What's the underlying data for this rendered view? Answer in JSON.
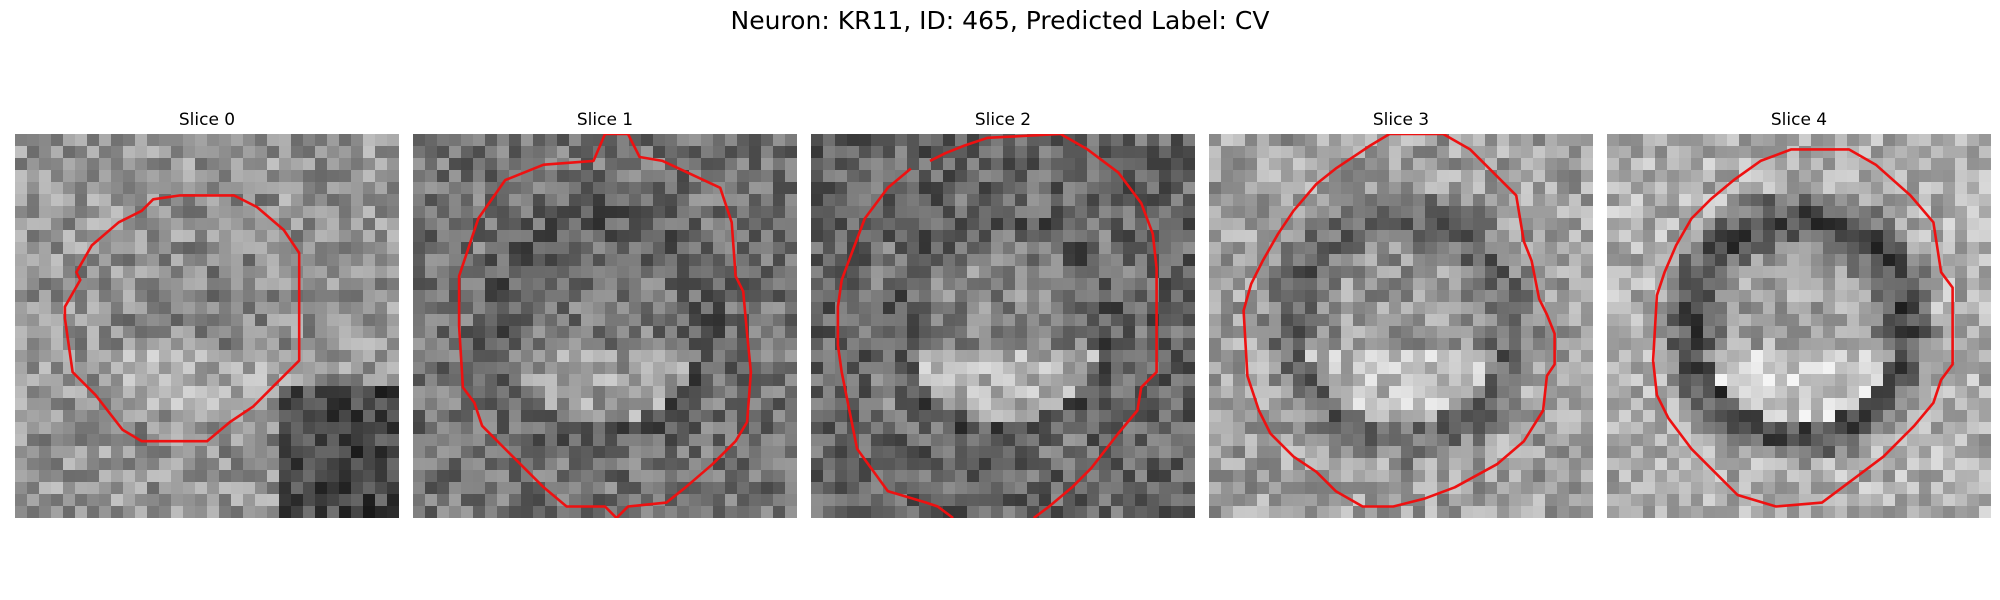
{
  "figure": {
    "title": "Neuron: KR11, ID: 465, Predicted Label: CV"
  },
  "panels": [
    {
      "title": "Slice 0",
      "seed": 11,
      "bg": 150,
      "inner": 135,
      "ring": 150,
      "dark_lower_right": true,
      "contour": [
        [
          0.36,
          0.17
        ],
        [
          0.43,
          0.16
        ],
        [
          0.57,
          0.16
        ],
        [
          0.63,
          0.19
        ],
        [
          0.7,
          0.25
        ],
        [
          0.74,
          0.31
        ],
        [
          0.74,
          0.59
        ],
        [
          0.68,
          0.65
        ],
        [
          0.62,
          0.71
        ],
        [
          0.56,
          0.75
        ],
        [
          0.5,
          0.8
        ],
        [
          0.33,
          0.8
        ],
        [
          0.28,
          0.77
        ],
        [
          0.21,
          0.68
        ],
        [
          0.15,
          0.62
        ],
        [
          0.13,
          0.48
        ],
        [
          0.13,
          0.45
        ],
        [
          0.17,
          0.38
        ],
        [
          0.16,
          0.36
        ],
        [
          0.2,
          0.29
        ],
        [
          0.27,
          0.23
        ],
        [
          0.33,
          0.2
        ]
      ]
    },
    {
      "title": "Slice 1",
      "seed": 23,
      "bg": 115,
      "inner": 120,
      "ring": 85,
      "dark_lower_right": false,
      "contour": [
        [
          0.24,
          0.12
        ],
        [
          0.34,
          0.08
        ],
        [
          0.47,
          0.07
        ],
        [
          0.5,
          0.0
        ],
        [
          0.56,
          0.0
        ],
        [
          0.59,
          0.06
        ],
        [
          0.65,
          0.07
        ],
        [
          0.8,
          0.14
        ],
        [
          0.83,
          0.23
        ],
        [
          0.84,
          0.37
        ],
        [
          0.86,
          0.41
        ],
        [
          0.87,
          0.52
        ],
        [
          0.88,
          0.62
        ],
        [
          0.87,
          0.75
        ],
        [
          0.84,
          0.8
        ],
        [
          0.78,
          0.86
        ],
        [
          0.71,
          0.92
        ],
        [
          0.66,
          0.96
        ],
        [
          0.56,
          0.97
        ],
        [
          0.53,
          1.0
        ],
        [
          0.5,
          0.97
        ],
        [
          0.4,
          0.97
        ],
        [
          0.34,
          0.92
        ],
        [
          0.26,
          0.84
        ],
        [
          0.18,
          0.76
        ],
        [
          0.16,
          0.7
        ],
        [
          0.13,
          0.66
        ],
        [
          0.12,
          0.5
        ],
        [
          0.12,
          0.37
        ],
        [
          0.14,
          0.31
        ],
        [
          0.17,
          0.22
        ]
      ]
    },
    {
      "title": "Slice 2",
      "seed": 37,
      "bg": 100,
      "inner": 135,
      "ring": 80,
      "dark_lower_right": false,
      "contour": [
        [
          0.31,
          0.07
        ],
        [
          0.35,
          0.05
        ],
        [
          0.4,
          0.03
        ],
        [
          0.46,
          0.01
        ],
        [
          0.65,
          0.0
        ],
        [
          0.72,
          0.04
        ],
        [
          0.8,
          0.1
        ],
        [
          0.86,
          0.18
        ],
        [
          0.89,
          0.26
        ],
        [
          0.9,
          0.35
        ],
        [
          0.9,
          0.62
        ],
        [
          0.86,
          0.66
        ],
        [
          0.85,
          0.72
        ],
        [
          0.8,
          0.78
        ],
        [
          0.73,
          0.87
        ],
        [
          0.68,
          0.92
        ],
        [
          0.62,
          0.97
        ],
        [
          0.58,
          1.0
        ]
      ],
      "contour_open": true,
      "contour2": [
        [
          0.37,
          1.0
        ],
        [
          0.33,
          0.97
        ],
        [
          0.3,
          0.96
        ],
        [
          0.2,
          0.93
        ],
        [
          0.12,
          0.82
        ],
        [
          0.1,
          0.72
        ],
        [
          0.08,
          0.62
        ],
        [
          0.07,
          0.55
        ],
        [
          0.07,
          0.45
        ],
        [
          0.08,
          0.38
        ],
        [
          0.11,
          0.3
        ],
        [
          0.14,
          0.22
        ],
        [
          0.2,
          0.14
        ],
        [
          0.26,
          0.09
        ]
      ]
    },
    {
      "title": "Slice 3",
      "seed": 41,
      "bg": 160,
      "inner": 150,
      "ring": 95,
      "dark_lower_right": false,
      "contour": [
        [
          0.39,
          0.05
        ],
        [
          0.42,
          0.03
        ],
        [
          0.47,
          0.0
        ],
        [
          0.61,
          0.0
        ],
        [
          0.68,
          0.04
        ],
        [
          0.74,
          0.1
        ],
        [
          0.8,
          0.16
        ],
        [
          0.82,
          0.28
        ],
        [
          0.84,
          0.33
        ],
        [
          0.86,
          0.43
        ],
        [
          0.88,
          0.47
        ],
        [
          0.9,
          0.52
        ],
        [
          0.9,
          0.6
        ],
        [
          0.88,
          0.63
        ],
        [
          0.87,
          0.72
        ],
        [
          0.82,
          0.8
        ],
        [
          0.75,
          0.86
        ],
        [
          0.64,
          0.92
        ],
        [
          0.56,
          0.95
        ],
        [
          0.48,
          0.97
        ],
        [
          0.4,
          0.97
        ],
        [
          0.33,
          0.93
        ],
        [
          0.28,
          0.88
        ],
        [
          0.22,
          0.84
        ],
        [
          0.16,
          0.78
        ],
        [
          0.13,
          0.72
        ],
        [
          0.1,
          0.63
        ],
        [
          0.09,
          0.46
        ],
        [
          0.11,
          0.39
        ],
        [
          0.14,
          0.33
        ],
        [
          0.18,
          0.26
        ],
        [
          0.22,
          0.2
        ],
        [
          0.28,
          0.13
        ],
        [
          0.33,
          0.09
        ]
      ]
    },
    {
      "title": "Slice 4",
      "seed": 53,
      "bg": 175,
      "inner": 165,
      "ring": 60,
      "dark_lower_right": false,
      "contour": [
        [
          0.33,
          0.12
        ],
        [
          0.4,
          0.07
        ],
        [
          0.48,
          0.04
        ],
        [
          0.63,
          0.04
        ],
        [
          0.7,
          0.08
        ],
        [
          0.79,
          0.16
        ],
        [
          0.85,
          0.23
        ],
        [
          0.87,
          0.36
        ],
        [
          0.9,
          0.4
        ],
        [
          0.9,
          0.6
        ],
        [
          0.87,
          0.64
        ],
        [
          0.85,
          0.7
        ],
        [
          0.8,
          0.76
        ],
        [
          0.72,
          0.84
        ],
        [
          0.64,
          0.9
        ],
        [
          0.56,
          0.96
        ],
        [
          0.44,
          0.97
        ],
        [
          0.34,
          0.94
        ],
        [
          0.28,
          0.88
        ],
        [
          0.22,
          0.82
        ],
        [
          0.16,
          0.74
        ],
        [
          0.13,
          0.68
        ],
        [
          0.12,
          0.59
        ],
        [
          0.13,
          0.42
        ],
        [
          0.15,
          0.36
        ],
        [
          0.18,
          0.29
        ],
        [
          0.22,
          0.22
        ],
        [
          0.27,
          0.17
        ]
      ]
    }
  ]
}
